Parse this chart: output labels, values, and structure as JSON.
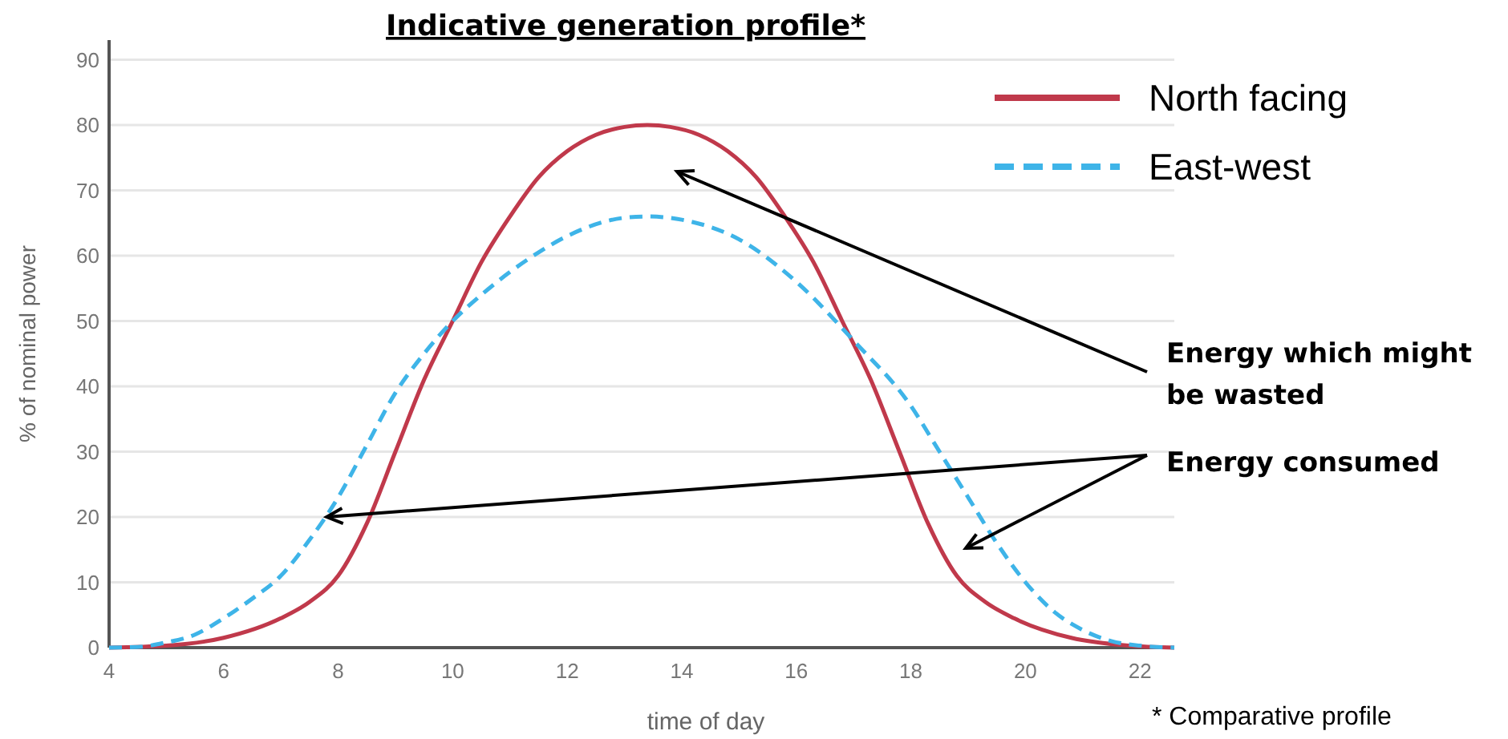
{
  "chart_data": {
    "type": "line",
    "title": "Indicative generation profile*",
    "xlabel": "time of day",
    "ylabel": "% of nominal power",
    "xlim": [
      4,
      22.6
    ],
    "xticks": [
      4,
      6,
      8,
      10,
      12,
      14,
      16,
      18,
      20,
      22
    ],
    "ylim": [
      0,
      93
    ],
    "yticks": [
      0,
      10,
      20,
      30,
      40,
      50,
      60,
      70,
      80,
      90
    ],
    "grid": "y",
    "legend": "top right",
    "series": [
      {
        "name": "North facing",
        "color": "#c0394b",
        "line_style": "solid",
        "x": [
          4,
          5,
          6,
          7,
          7.5,
          8,
          8.5,
          9,
          9.5,
          10,
          10.5,
          11,
          11.5,
          12,
          12.5,
          13,
          13.4,
          13.8,
          14.3,
          14.8,
          15.3,
          15.8,
          16.3,
          16.8,
          17.3,
          17.8,
          18.3,
          18.8,
          19.3,
          19.8,
          20.8,
          21.8,
          22.6
        ],
        "values": [
          0,
          0.3,
          1.5,
          4.5,
          7,
          11,
          19,
          30,
          41,
          50,
          59,
          66,
          72,
          76,
          78.5,
          79.7,
          80,
          79.7,
          78.5,
          76,
          72,
          66,
          59,
          50,
          41,
          30,
          19,
          11,
          7,
          4.5,
          1.5,
          0.3,
          0
        ]
      },
      {
        "name": "East-west",
        "color": "#3eb4e8",
        "line_style": "dashed",
        "x": [
          4,
          4.5,
          5,
          5.5,
          6,
          6.5,
          7,
          7.5,
          8,
          8.5,
          9,
          9.5,
          10,
          10.5,
          11,
          11.5,
          12,
          13,
          13.4,
          14,
          15,
          16,
          17,
          18,
          18.5,
          19,
          19.5,
          20,
          20.5,
          21,
          21.5,
          22,
          22.6
        ],
        "values": [
          0,
          0.1,
          0.8,
          2,
          4.5,
          7.5,
          11,
          16.5,
          23,
          31,
          39,
          45,
          50,
          54,
          57.5,
          60.5,
          63,
          65.8,
          66,
          65.5,
          62.5,
          56,
          47,
          37,
          30,
          23,
          16,
          10,
          5.5,
          2.7,
          1,
          0.3,
          0
        ]
      }
    ],
    "annotations": [
      "Energy which might be wasted",
      {
        "text": "Energy consumed",
        "x": 7.8,
        "y": 20
      },
      "* Comparative profile"
    ]
  }
}
